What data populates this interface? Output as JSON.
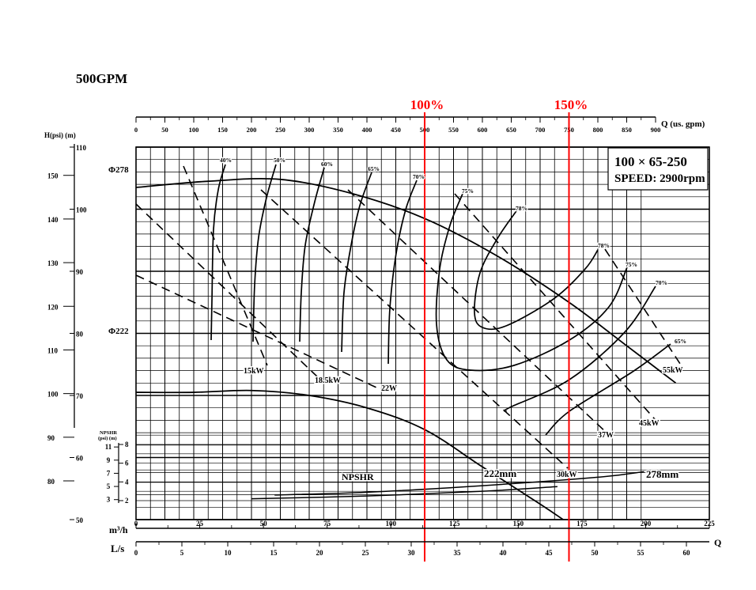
{
  "chart_data": {
    "type": "line",
    "model_title": "500GPM",
    "spec_line1": "100 × 65-250",
    "spec_line2": "SPEED:  2900rpm",
    "top_axis": {
      "unit_label": "Q (us. gpm)",
      "ticks": [
        0,
        50,
        100,
        150,
        200,
        250,
        300,
        350,
        400,
        450,
        500,
        550,
        600,
        650,
        700,
        750,
        800,
        850,
        900
      ],
      "range": [
        0,
        900
      ]
    },
    "h_axis_label": "H(psi) (m)",
    "head_m_ticks": [
      50,
      60,
      70,
      80,
      90,
      100,
      110
    ],
    "head_psi_ticks": [
      80,
      90,
      100,
      110,
      120,
      130,
      140,
      150
    ],
    "npshr_axis_label": "NPSHR",
    "npshr_axis_sublabel": "(psi) (m)",
    "npshr_m_ticks": [
      2,
      4,
      6,
      8
    ],
    "npshr_psi_ticks": [
      3,
      5,
      7,
      9,
      11
    ],
    "m3h_axis": {
      "label": "m³/h",
      "ticks": [
        0,
        25,
        50,
        75,
        100,
        125,
        150,
        175,
        200,
        225
      ],
      "range": [
        0,
        225
      ]
    },
    "ls_axis": {
      "label": "L/s",
      "end_label": "Q",
      "ticks": [
        0,
        5,
        10,
        15,
        20,
        25,
        30,
        35,
        40,
        45,
        50,
        55,
        60
      ],
      "range": [
        0,
        62.5
      ]
    },
    "reference_lines": [
      {
        "label": "100%",
        "q_usgpm": 500,
        "color": "#ff0000"
      },
      {
        "label": "150%",
        "q_usgpm": 750,
        "color": "#ff0000"
      }
    ],
    "impeller_curves": [
      {
        "label": "Φ278",
        "points": [
          [
            0,
            103.5
          ],
          [
            125,
            104.5
          ],
          [
            250,
            104.8
          ],
          [
            375,
            102.5
          ],
          [
            500,
            98.5
          ],
          [
            625,
            92.5
          ],
          [
            750,
            85
          ],
          [
            850,
            78
          ],
          [
            935,
            72
          ]
        ]
      },
      {
        "label": "Φ222",
        "points": [
          [
            0,
            70.5
          ],
          [
            100,
            70.5
          ],
          [
            200,
            70.8
          ],
          [
            300,
            70
          ],
          [
            400,
            68
          ],
          [
            500,
            64.5
          ],
          [
            600,
            58.5
          ],
          [
            700,
            52.5
          ],
          [
            740,
            50
          ]
        ]
      }
    ],
    "efficiency_labels": [
      "40%",
      "50%",
      "60%",
      "65%",
      "70%",
      "75%",
      "78%",
      "78%",
      "75%",
      "70%",
      "65%"
    ],
    "power_labels": [
      "15kW",
      "18.5kW",
      "22W",
      "30kW",
      "37W",
      "45kW",
      "55kW"
    ],
    "npshr_curves": [
      {
        "label": "222mm",
        "points": [
          [
            200,
            2.2
          ],
          [
            400,
            2.5
          ],
          [
            600,
            3.0
          ],
          [
            730,
            3.5
          ]
        ]
      },
      {
        "label": "278mm",
        "points": [
          [
            240,
            2.6
          ],
          [
            400,
            2.9
          ],
          [
            600,
            3.6
          ],
          [
            800,
            4.5
          ],
          [
            880,
            5.1
          ]
        ]
      }
    ],
    "npshr_title": "NPSHR",
    "colors": {
      "ink": "#000000",
      "reference": "#ff0000"
    }
  }
}
